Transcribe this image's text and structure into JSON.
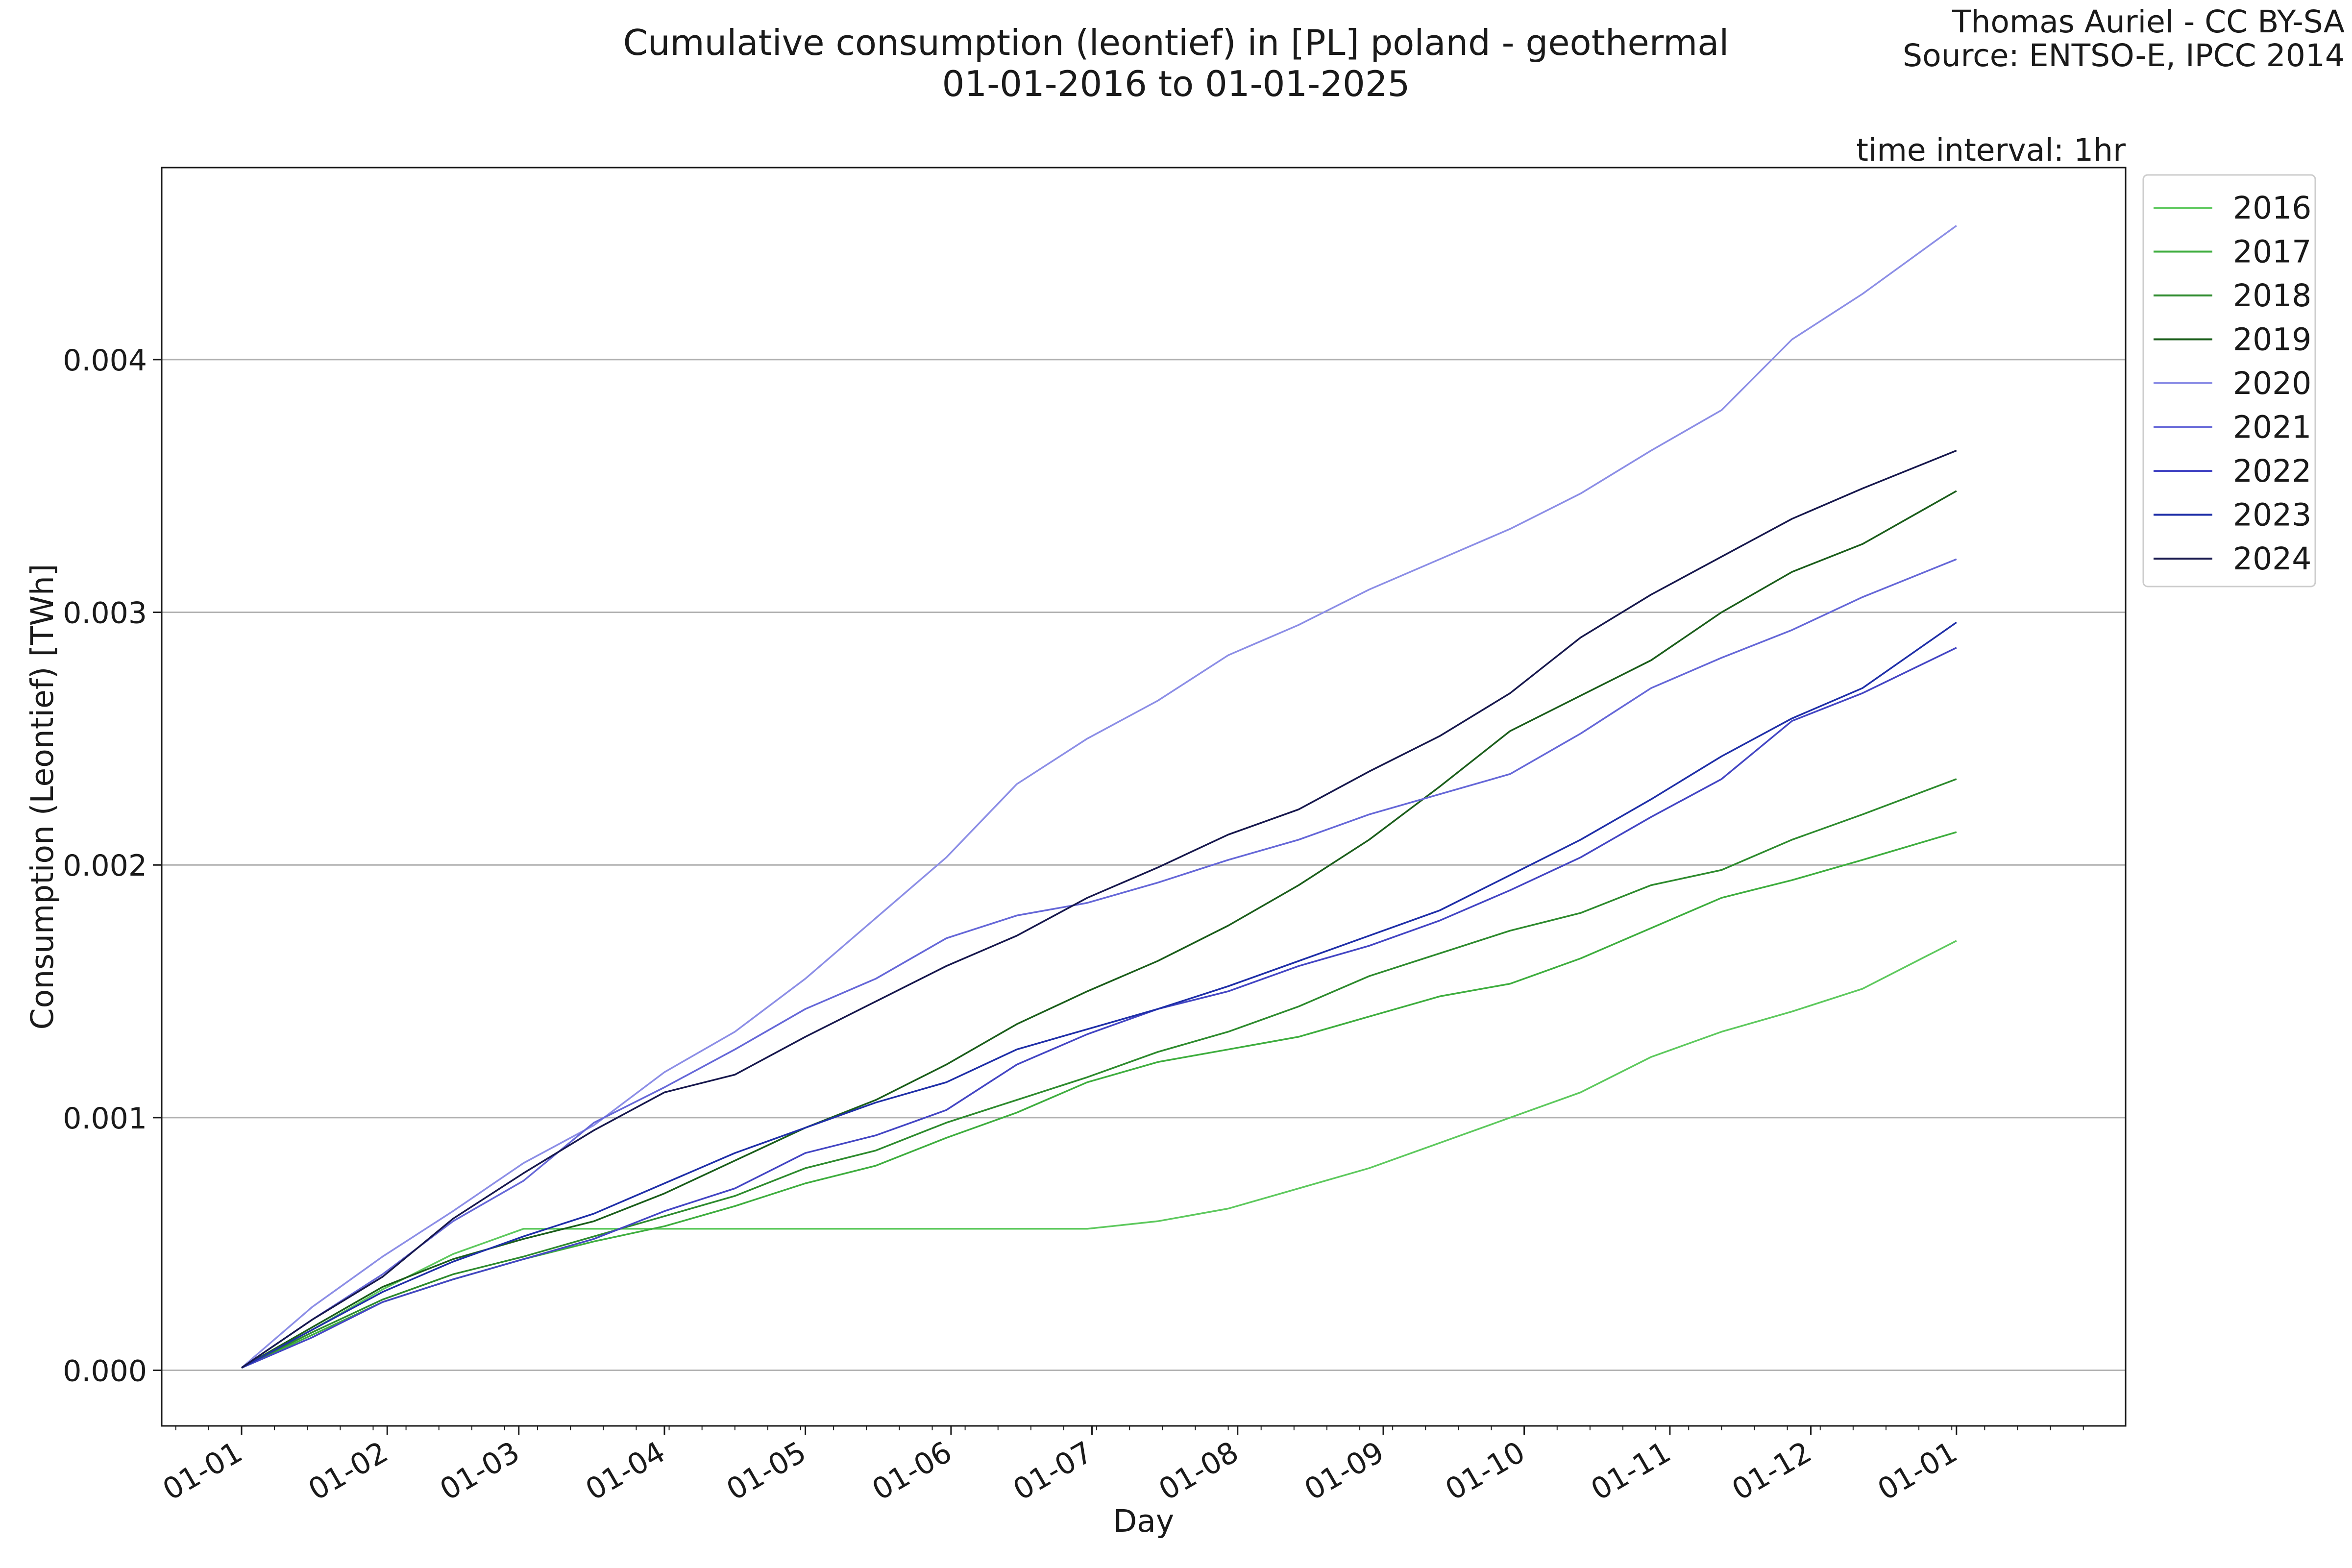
{
  "chart_data": {
    "type": "line",
    "title": "Cumulative consumption (leontief) in [PL] poland - geothermal",
    "subtitle": "01-01-2016 to 01-01-2025",
    "credit_lines": [
      "Thomas Auriel - CC BY-SA",
      "Source: ENTSO-E, IPCC 2014"
    ],
    "interval_note": "time interval: 1hr",
    "xlabel": "Day",
    "ylabel": "Consumption (Leontief) [TWh]",
    "x_unit": "day of year",
    "xlim": [
      -17,
      401
    ],
    "ylim": [
      -0.00022,
      0.00476
    ],
    "x_ticks": [
      {
        "x": 0,
        "label": "01-01"
      },
      {
        "x": 31,
        "label": "01-02"
      },
      {
        "x": 59,
        "label": "01-03"
      },
      {
        "x": 90,
        "label": "01-04"
      },
      {
        "x": 120,
        "label": "01-05"
      },
      {
        "x": 151,
        "label": "01-06"
      },
      {
        "x": 181,
        "label": "01-07"
      },
      {
        "x": 212,
        "label": "01-08"
      },
      {
        "x": 243,
        "label": "01-09"
      },
      {
        "x": 273,
        "label": "01-10"
      },
      {
        "x": 304,
        "label": "01-11"
      },
      {
        "x": 334,
        "label": "01-12"
      },
      {
        "x": 365,
        "label": "01-01"
      }
    ],
    "y_ticks": [
      {
        "y": 0.0,
        "label": "0.000"
      },
      {
        "y": 0.001,
        "label": "0.001"
      },
      {
        "y": 0.002,
        "label": "0.002"
      },
      {
        "y": 0.003,
        "label": "0.003"
      },
      {
        "y": 0.004,
        "label": "0.004"
      }
    ],
    "grid": "horizontal",
    "legend_position": "outside-top-right",
    "x": [
      0,
      15,
      30,
      45,
      60,
      75,
      90,
      105,
      120,
      135,
      150,
      165,
      180,
      195,
      210,
      225,
      240,
      255,
      270,
      285,
      300,
      315,
      330,
      345,
      365
    ],
    "series": [
      {
        "name": "2016",
        "color": "#5ec95e",
        "values": [
          1e-05,
          0.00016,
          0.00032,
          0.00046,
          0.00056,
          0.00056,
          0.00056,
          0.00056,
          0.00056,
          0.00056,
          0.00056,
          0.00056,
          0.00056,
          0.00059,
          0.00064,
          0.00072,
          0.0008,
          0.0009,
          0.001,
          0.0011,
          0.00124,
          0.00134,
          0.00142,
          0.00151,
          0.0017
        ]
      },
      {
        "name": "2017",
        "color": "#3fae3f",
        "values": [
          1e-05,
          0.00014,
          0.00027,
          0.00036,
          0.00044,
          0.00051,
          0.00057,
          0.00065,
          0.00074,
          0.00081,
          0.00092,
          0.00102,
          0.00114,
          0.00122,
          0.00127,
          0.00132,
          0.0014,
          0.00148,
          0.00153,
          0.00163,
          0.00175,
          0.00187,
          0.00194,
          0.00202,
          0.00213
        ]
      },
      {
        "name": "2018",
        "color": "#2e8b2e",
        "values": [
          1e-05,
          0.00015,
          0.00028,
          0.00038,
          0.00045,
          0.00053,
          0.00061,
          0.00069,
          0.0008,
          0.00087,
          0.00098,
          0.00107,
          0.00116,
          0.00126,
          0.00134,
          0.00144,
          0.00156,
          0.00165,
          0.00174,
          0.00181,
          0.00192,
          0.00198,
          0.0021,
          0.0022,
          0.00234
        ]
      },
      {
        "name": "2019",
        "color": "#1b5e1b",
        "values": [
          1e-05,
          0.00017,
          0.00033,
          0.00044,
          0.00052,
          0.00059,
          0.0007,
          0.00083,
          0.00096,
          0.00107,
          0.00121,
          0.00137,
          0.0015,
          0.00162,
          0.00176,
          0.00192,
          0.0021,
          0.00231,
          0.00253,
          0.00267,
          0.00281,
          0.003,
          0.00316,
          0.00327,
          0.00348
        ]
      },
      {
        "name": "2020",
        "color": "#8c8ee6",
        "values": [
          1e-05,
          0.00025,
          0.00045,
          0.00063,
          0.00082,
          0.00097,
          0.00118,
          0.00134,
          0.00155,
          0.00179,
          0.00203,
          0.00232,
          0.0025,
          0.00265,
          0.00283,
          0.00295,
          0.00309,
          0.00321,
          0.00333,
          0.00347,
          0.00364,
          0.0038,
          0.00408,
          0.00426,
          0.00453
        ]
      },
      {
        "name": "2021",
        "color": "#6668d8",
        "values": [
          1e-05,
          0.0002,
          0.00038,
          0.00059,
          0.00075,
          0.00098,
          0.00112,
          0.00127,
          0.00143,
          0.00155,
          0.00171,
          0.0018,
          0.00185,
          0.00193,
          0.00202,
          0.0021,
          0.0022,
          0.00228,
          0.00236,
          0.00252,
          0.0027,
          0.00282,
          0.00293,
          0.00306,
          0.00321
        ]
      },
      {
        "name": "2022",
        "color": "#4446c4",
        "values": [
          1e-05,
          0.00013,
          0.00027,
          0.00036,
          0.00044,
          0.00052,
          0.00063,
          0.00072,
          0.00086,
          0.00093,
          0.00103,
          0.00121,
          0.00133,
          0.00143,
          0.0015,
          0.0016,
          0.00168,
          0.00178,
          0.0019,
          0.00203,
          0.00219,
          0.00234,
          0.00257,
          0.00268,
          0.00286
        ]
      },
      {
        "name": "2023",
        "color": "#1f2fa8",
        "values": [
          1e-05,
          0.00016,
          0.00031,
          0.00043,
          0.00053,
          0.00062,
          0.00074,
          0.00086,
          0.00096,
          0.00106,
          0.00114,
          0.00127,
          0.00135,
          0.00143,
          0.00152,
          0.00162,
          0.00172,
          0.00182,
          0.00196,
          0.0021,
          0.00226,
          0.00243,
          0.00258,
          0.0027,
          0.00296
        ]
      },
      {
        "name": "2024",
        "color": "#17184d",
        "values": [
          1e-05,
          0.0002,
          0.00037,
          0.0006,
          0.00078,
          0.00095,
          0.0011,
          0.00117,
          0.00132,
          0.00146,
          0.0016,
          0.00172,
          0.00187,
          0.00199,
          0.00212,
          0.00222,
          0.00237,
          0.00251,
          0.00268,
          0.0029,
          0.00307,
          0.00322,
          0.00337,
          0.00349,
          0.00364
        ]
      }
    ]
  }
}
